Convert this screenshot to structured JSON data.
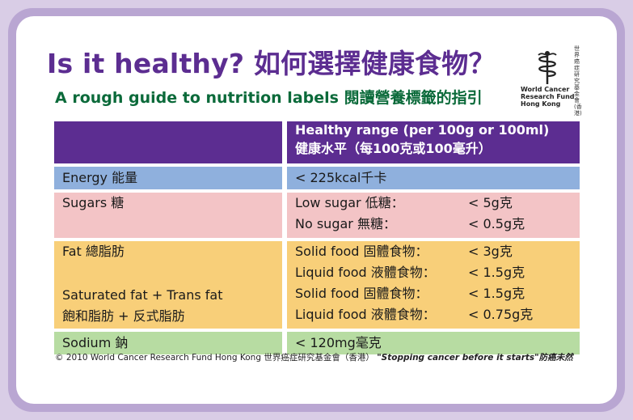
{
  "title": "Is it healthy? 如何選擇健康食物？",
  "subtitle": "A rough guide to nutrition labels 閱讀營養標籤的指引",
  "logo": {
    "icon": "caduceus-icon",
    "line1": "World Cancer",
    "line2": "Research Fund",
    "line3": "Hong Kong",
    "vertical": "世界癌症研究基金會(香港)"
  },
  "table": {
    "header": {
      "line1": "Healthy range (per 100g or 100ml)",
      "line2": "健康水平（每100克或100毫升）"
    },
    "energy": {
      "label": "Energy 能量",
      "value": "< 225kcal千卡"
    },
    "sugars": {
      "label": "Sugars 糖",
      "rows": [
        {
          "item": "Low sugar 低糖：",
          "value": "< 5g克"
        },
        {
          "item": "No sugar 無糖：",
          "value": "< 0.5g克"
        }
      ]
    },
    "fat": {
      "label": "Fat 總脂肪",
      "rows": [
        {
          "item": "Solid food 固體食物：",
          "value": "< 3g克"
        },
        {
          "item": "Liquid food 液體食物：",
          "value": "< 1.5g克"
        }
      ]
    },
    "satfat": {
      "label1": "Saturated fat + Trans fat",
      "label2": "飽和脂肪 + 反式脂肪",
      "rows": [
        {
          "item": "Solid food 固體食物：",
          "value": "< 1.5g克"
        },
        {
          "item": "Liquid food 液體食物：",
          "value": "< 0.75g克"
        }
      ]
    },
    "sodium": {
      "label": "Sodium 鈉",
      "value": "< 120mg毫克"
    }
  },
  "footer": {
    "copyright": "© 2010 World Cancer Research Fund Hong Kong 世界癌症研究基金會（香港）",
    "slogan": "\"Stopping cancer before it starts\"防癌未然"
  },
  "colors": {
    "purple": "#5c2d91",
    "green": "#0b6a3a",
    "energy": "#8fb0dd",
    "sugars": "#f3c4c6",
    "fat": "#f8cf79",
    "sodium": "#b7dca2"
  }
}
